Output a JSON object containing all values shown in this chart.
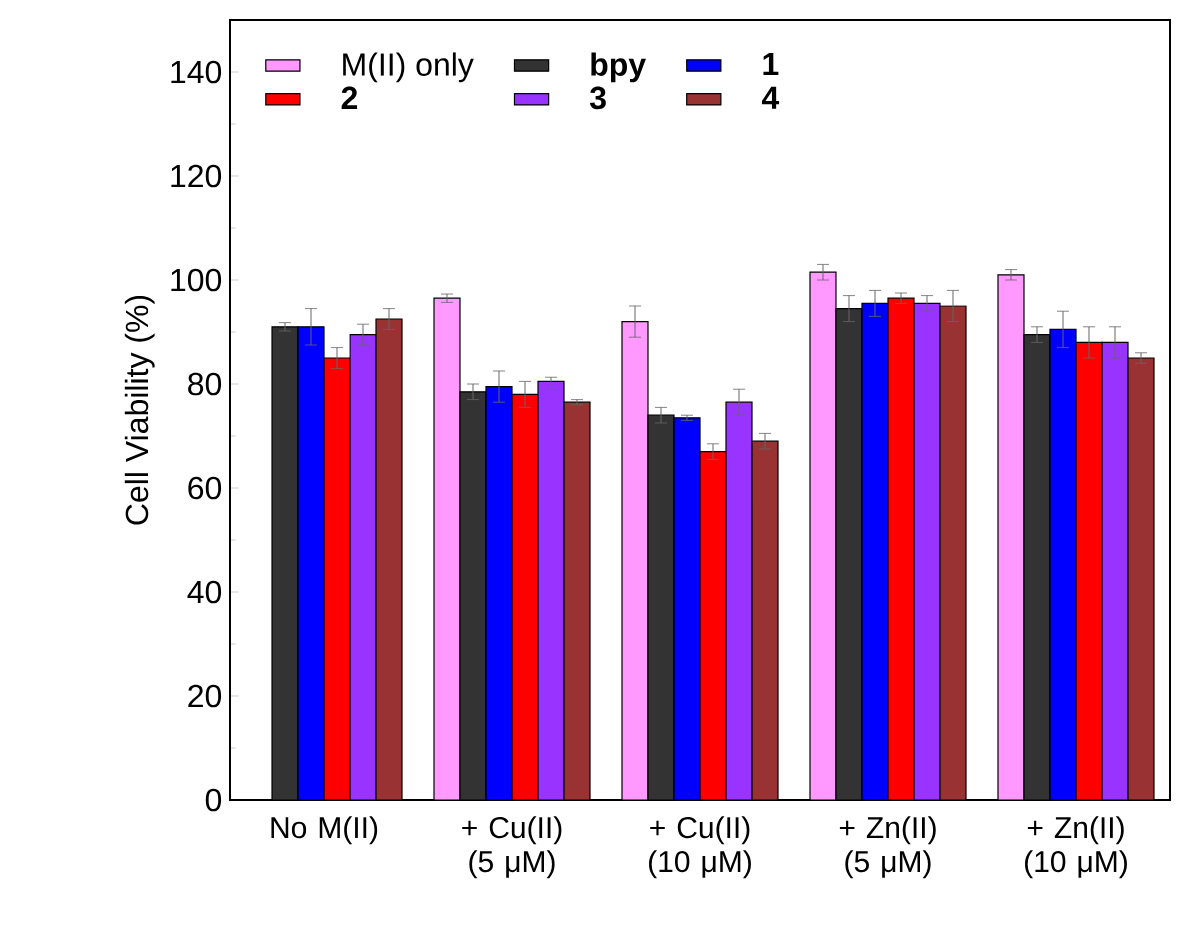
{
  "chart_data": {
    "type": "bar",
    "ylabel": "Cell Viability (%)",
    "categories": [
      "No M(II)",
      "+ Cu(II) (5 μM)",
      "+ Cu(II) (10 μM)",
      "+ Zn(II) (5 μM)",
      "+ Zn(II) (10 μM)"
    ],
    "series": [
      {
        "name": "M(II) only",
        "color": "#ff99ff",
        "values": [
          null,
          96.5,
          92,
          101.5,
          101
        ],
        "errors": [
          null,
          0.8,
          3,
          1.5,
          1
        ]
      },
      {
        "name": "**bpy**",
        "color": "#333333",
        "values": [
          91,
          78.5,
          74,
          94.5,
          89.5
        ],
        "errors": [
          0.8,
          1.5,
          1.5,
          2.5,
          1.5
        ]
      },
      {
        "name": "**1**",
        "color": "#0000ff",
        "values": [
          91,
          79.5,
          73.5,
          95.5,
          90.5
        ],
        "errors": [
          3.5,
          3,
          0.5,
          2.5,
          3.5
        ]
      },
      {
        "name": "**2**",
        "color": "#ff0000",
        "values": [
          85,
          78,
          67,
          96.5,
          88
        ],
        "errors": [
          2,
          2.5,
          1.5,
          1,
          3
        ]
      },
      {
        "name": "**3**",
        "color": "#9933ff",
        "values": [
          89.5,
          80.5,
          76.5,
          95.5,
          88
        ],
        "errors": [
          2,
          0.8,
          2.5,
          1.5,
          3
        ]
      },
      {
        "name": "**4**",
        "color": "#993333",
        "values": [
          92.5,
          76.5,
          69,
          95,
          85
        ],
        "errors": [
          2,
          0.5,
          1.5,
          3,
          1
        ]
      }
    ],
    "ylim": [
      0,
      150
    ],
    "yticks": [
      0,
      20,
      40,
      60,
      80,
      100,
      120,
      140
    ],
    "legend": "top left"
  }
}
